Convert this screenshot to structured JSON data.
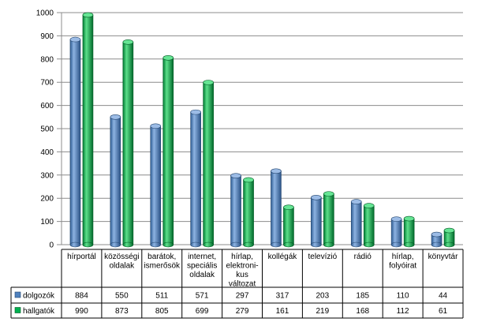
{
  "chart_data": {
    "type": "bar",
    "style": "3d-cylinder",
    "categories": [
      [
        "hírportál"
      ],
      [
        "közösségi",
        "oldalak"
      ],
      [
        "barátok,",
        "ismerősök"
      ],
      [
        "internet,",
        "speciális",
        "oldalak"
      ],
      [
        "hírlap,",
        "elektroni-",
        "kus",
        "változat"
      ],
      [
        "kollégák"
      ],
      [
        "televízió"
      ],
      [
        "rádió"
      ],
      [
        "hírlap,",
        "folyóirat"
      ],
      [
        "könyvtár"
      ]
    ],
    "series": [
      {
        "name": "dolgozók",
        "color": "#4F81BD",
        "values": [
          884,
          550,
          511,
          571,
          297,
          317,
          203,
          185,
          110,
          44
        ]
      },
      {
        "name": "hallgatók",
        "color": "#00B050",
        "values": [
          990,
          873,
          805,
          699,
          279,
          161,
          219,
          168,
          112,
          61
        ]
      }
    ],
    "ylim": [
      0,
      1000
    ],
    "yticks": [
      0,
      100,
      200,
      300,
      400,
      500,
      600,
      700,
      800,
      900,
      1000
    ],
    "grid": true,
    "legend": "data-table-left"
  }
}
